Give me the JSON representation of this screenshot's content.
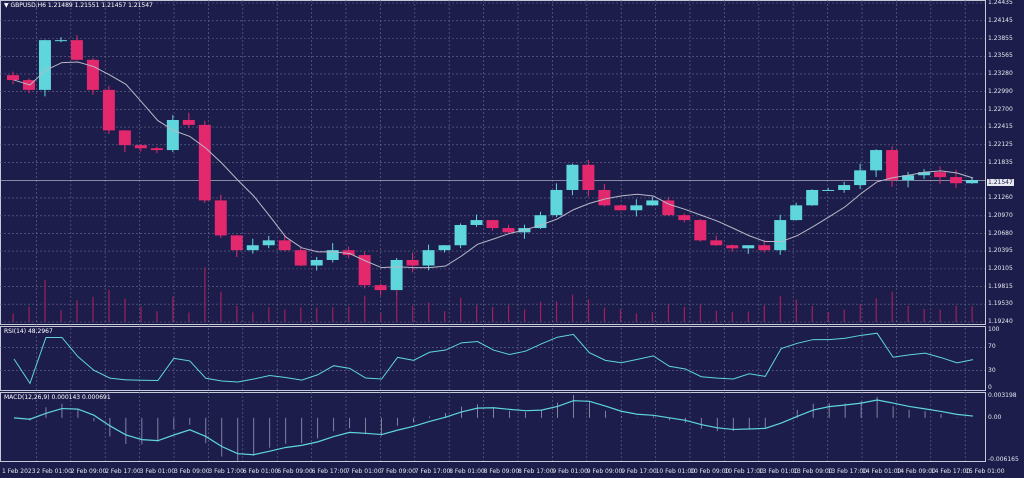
{
  "header": {
    "symbol": "GBPUSD,H6",
    "ohlc": "1.21489 1.21551 1.21457 1.21547"
  },
  "rsi_label": "RSI(14) 48.2967",
  "macd_label": "MACD(12,26,9) 0.000143 0.000691",
  "colors": {
    "background": "#1c1d4b",
    "bull": "#5fd6dc",
    "bear": "#e3286e",
    "ma": "#b8b8c8",
    "indicator": "#5fd6dc",
    "volume": "#a0205a",
    "grid": "#6a6c90"
  },
  "chart_data": {
    "type": "candlestick",
    "title": "GBPUSD,H6",
    "price_ticks": [
      "1.24435",
      "1.24145",
      "1.23855",
      "1.23565",
      "1.23280",
      "1.22990",
      "1.22700",
      "1.22415",
      "1.22125",
      "1.21835",
      "1.21547",
      "1.21260",
      "1.20970",
      "1.20680",
      "1.20395",
      "1.20105",
      "1.19815",
      "1.19530",
      "1.19240"
    ],
    "current_price": "1.21547",
    "ylim": [
      1.1924,
      1.24435
    ],
    "time_ticks": [
      "1 Feb 2023",
      "2 Feb 01:00",
      "2 Feb 09:00",
      "2 Feb 17:00",
      "3 Feb 01:00",
      "3 Feb 09:00",
      "3 Feb 17:00",
      "6 Feb 01:00",
      "6 Feb 09:00",
      "6 Feb 17:00",
      "7 Feb 01:00",
      "7 Feb 09:00",
      "7 Feb 17:00",
      "8 Feb 01:00",
      "8 Feb 09:00",
      "8 Feb 17:00",
      "9 Feb 01:00",
      "9 Feb 09:00",
      "9 Feb 17:00",
      "10 Feb 01:00",
      "10 Feb 09:00",
      "10 Feb 17:00",
      "13 Feb 01:00",
      "13 Feb 09:00",
      "13 Feb 17:00",
      "14 Feb 01:00",
      "14 Feb 09:00",
      "14 Feb 17:00",
      "15 Feb 01:00"
    ],
    "closes": [
      1.2318,
      1.2302,
      1.2383,
      1.2383,
      1.2351,
      1.2302,
      1.2236,
      1.2212,
      1.2207,
      1.2204,
      1.2253,
      1.2245,
      1.2122,
      1.2065,
      1.2041,
      1.2049,
      1.2057,
      1.2041,
      1.2016,
      1.2025,
      1.2041,
      1.2033,
      1.1984,
      1.1976,
      1.2025,
      1.2016,
      1.2041,
      1.2049,
      1.2082,
      1.209,
      1.2077,
      1.207,
      1.2077,
      1.2098,
      1.2139,
      1.218,
      1.2139,
      1.2114,
      1.2106,
      1.2114,
      1.2122,
      1.2098,
      1.209,
      1.2057,
      1.2049,
      1.2044,
      1.2049,
      1.2041,
      1.209,
      1.2114,
      1.2139,
      1.2139,
      1.2147,
      1.2171,
      1.2204,
      1.2155,
      1.2163,
      1.2168,
      1.216,
      1.215,
      1.21547
    ],
    "rsi": {
      "ticks": [
        "100",
        "70",
        "30",
        "0"
      ],
      "ylim": [
        0,
        100
      ]
    },
    "macd": {
      "ticks": [
        "0.003198",
        "0.00",
        "-0.006165"
      ],
      "ylim": [
        -0.006165,
        0.003198
      ]
    }
  }
}
